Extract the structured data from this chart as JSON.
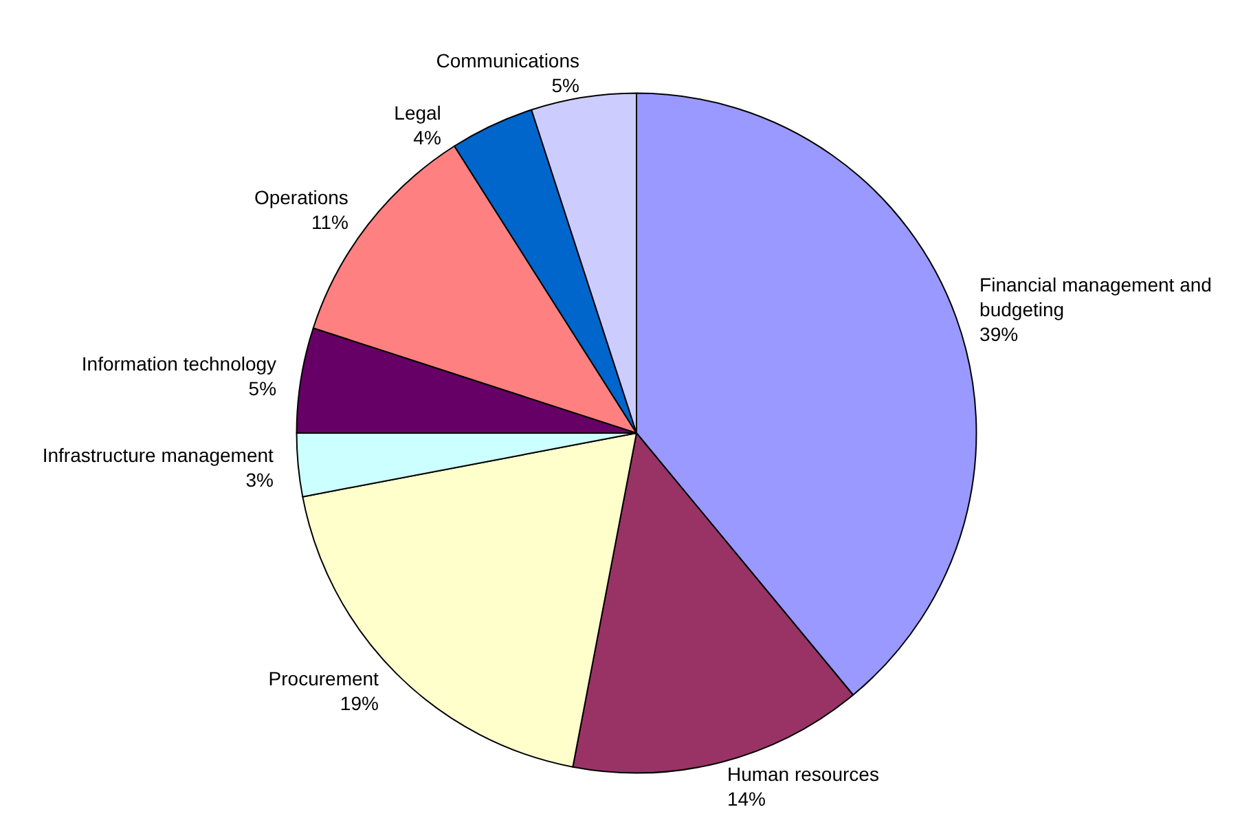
{
  "chart_data": {
    "type": "pie",
    "categories": [
      "Financial management and budgeting",
      "Human resources",
      "Procurement",
      "Infrastructure management",
      "Information technology",
      "Operations",
      "Legal",
      "Communications"
    ],
    "values": [
      39,
      14,
      19,
      3,
      5,
      11,
      4,
      5
    ],
    "value_labels": [
      "39%",
      "14%",
      "19%",
      "3%",
      "5%",
      "11%",
      "4%",
      "5%"
    ],
    "colors": [
      "#9999ff",
      "#993366",
      "#ffffcc",
      "#ccffff",
      "#660066",
      "#ff8080",
      "#0066cc",
      "#ccccff"
    ],
    "legend": false
  }
}
